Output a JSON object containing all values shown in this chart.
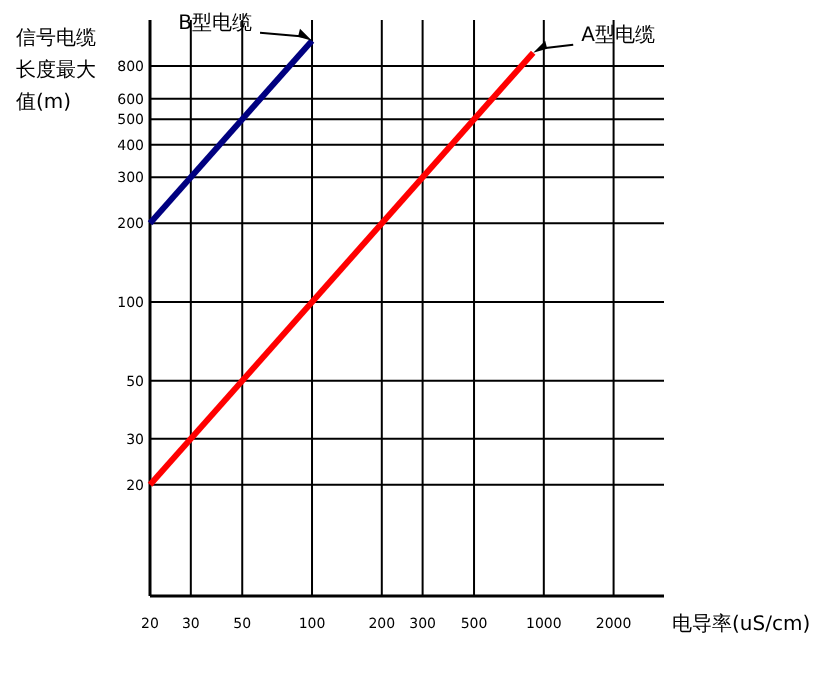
{
  "chart_data": {
    "type": "line",
    "xlabel": "电导率(uS/cm)",
    "ylabel": "信号电缆长度最大值(m)",
    "log": "xy",
    "grid": true,
    "marker": "none",
    "line_style": "solid",
    "xlim": [
      20,
      3300
    ],
    "xticks": [
      20,
      30,
      50,
      100,
      200,
      300,
      500,
      1000,
      2000
    ],
    "ylim": [
      7.5,
      1200
    ],
    "yticks": [
      20,
      30,
      50,
      100,
      200,
      300,
      400,
      500,
      600,
      800
    ],
    "series": [
      {
        "name": "B型电缆",
        "color": "#000080",
        "x": [
          20,
          100
        ],
        "values": [
          200,
          1000
        ]
      },
      {
        "name": "A型电缆",
        "color": "#ff0000",
        "x": [
          20,
          900
        ],
        "values": [
          20,
          900
        ]
      }
    ]
  }
}
